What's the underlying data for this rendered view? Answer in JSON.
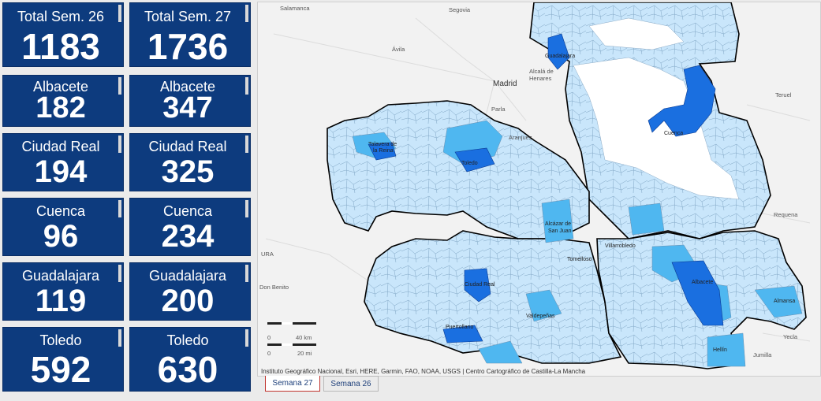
{
  "cards": [
    {
      "label": "Total Sem. 26",
      "value": "1183"
    },
    {
      "label": "Total Sem. 27",
      "value": "1736"
    },
    {
      "label": "Albacete",
      "value": "182"
    },
    {
      "label": "Albacete",
      "value": "347"
    },
    {
      "label": "Ciudad Real",
      "value": "194"
    },
    {
      "label": "Ciudad Real",
      "value": "325"
    },
    {
      "label": "Cuenca",
      "value": "96"
    },
    {
      "label": "Cuenca",
      "value": "234"
    },
    {
      "label": "Guadalajara",
      "value": "119"
    },
    {
      "label": "Guadalajara",
      "value": "200"
    },
    {
      "label": "Toledo",
      "value": "592"
    },
    {
      "label": "Toledo",
      "value": "630"
    }
  ],
  "map": {
    "places": {
      "salamanca": "Salamanca",
      "segovia": "Segovia",
      "avila": "Ávila",
      "madrid": "Madrid",
      "alcala": "Alcalá de",
      "henares": "Henares",
      "parla": "Parla",
      "aranjuez": "Aranjuez",
      "teruel": "Teruel",
      "requena": "Requena",
      "don_benito": "Don Benito",
      "yecla": "Yecla",
      "jumilla": "Jumilla",
      "ura": "URA"
    },
    "cities": {
      "guadalajara": "Guadalajara",
      "cuenca": "Cuenca",
      "talavera1": "Talavera de",
      "talavera2": "la Reina",
      "toledo": "Toledo",
      "alcazar1": "Alcázar de",
      "alcazar2": "San Juan",
      "villarrobledo": "Villarrobledo",
      "tomelloso": "Tomelloso",
      "albacete": "Albacete",
      "ciudad_real": "Ciudad Real",
      "valdepenas": "Valdepeñas",
      "puertollano": "Puertollano",
      "almansa": "Almansa",
      "hellin": "Hellín"
    },
    "scale": {
      "km_zero": "0",
      "km": "40 km",
      "mi_zero": "0",
      "mi": "20 mi"
    },
    "attribution": "Instituto Geográfico Nacional, Esri, HERE, Garmin, FAO, NOAA, USGS | Centro Cartográfico de Castilla-La Mancha",
    "colors": {
      "light": "#c9e6fb",
      "medium": "#4fb7f0",
      "dark": "#1a6fe0",
      "border": "#000000"
    }
  },
  "tabs": {
    "week27": "Semana 27",
    "week26": "Semana 26"
  }
}
